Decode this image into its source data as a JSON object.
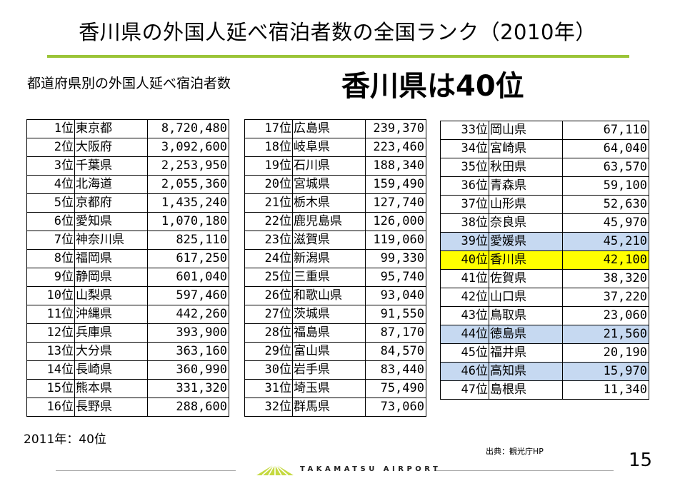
{
  "title": "香川県の外国人延べ宿泊者数の全国ランク（2010年）",
  "subtitle": "都道府県別の外国人延べ宿泊者数",
  "headline": "香川県は40位",
  "note": "2011年：40位",
  "source": "出典：観光庁HP",
  "page_number": "15",
  "footer_brand": "TAKAMATSU AIRPORT",
  "colors": {
    "title_rule": "#9bc438",
    "highlight_blue": "#c6d9f1",
    "highlight_yellow": "#ffff00"
  },
  "tables": [
    {
      "rows": [
        {
          "rank": "1位",
          "prefecture": "東京都",
          "value": "8,720,480"
        },
        {
          "rank": "2位",
          "prefecture": "大阪府",
          "value": "3,092,600"
        },
        {
          "rank": "3位",
          "prefecture": "千葉県",
          "value": "2,253,950"
        },
        {
          "rank": "4位",
          "prefecture": "北海道",
          "value": "2,055,360"
        },
        {
          "rank": "5位",
          "prefecture": "京都府",
          "value": "1,435,240"
        },
        {
          "rank": "6位",
          "prefecture": "愛知県",
          "value": "1,070,180"
        },
        {
          "rank": "7位",
          "prefecture": "神奈川県",
          "value": "825,110"
        },
        {
          "rank": "8位",
          "prefecture": "福岡県",
          "value": "617,250"
        },
        {
          "rank": "9位",
          "prefecture": "静岡県",
          "value": "601,040"
        },
        {
          "rank": "10位",
          "prefecture": "山梨県",
          "value": "597,460"
        },
        {
          "rank": "11位",
          "prefecture": "沖縄県",
          "value": "442,260"
        },
        {
          "rank": "12位",
          "prefecture": "兵庫県",
          "value": "393,900"
        },
        {
          "rank": "13位",
          "prefecture": "大分県",
          "value": "363,160"
        },
        {
          "rank": "14位",
          "prefecture": "長崎県",
          "value": "360,990"
        },
        {
          "rank": "15位",
          "prefecture": "熊本県",
          "value": "331,320"
        },
        {
          "rank": "16位",
          "prefecture": "長野県",
          "value": "288,600"
        }
      ]
    },
    {
      "rows": [
        {
          "rank": "17位",
          "prefecture": "広島県",
          "value": "239,370"
        },
        {
          "rank": "18位",
          "prefecture": "岐阜県",
          "value": "223,460"
        },
        {
          "rank": "19位",
          "prefecture": "石川県",
          "value": "188,340"
        },
        {
          "rank": "20位",
          "prefecture": "宮城県",
          "value": "159,490"
        },
        {
          "rank": "21位",
          "prefecture": "栃木県",
          "value": "127,740"
        },
        {
          "rank": "22位",
          "prefecture": "鹿児島県",
          "value": "126,000"
        },
        {
          "rank": "23位",
          "prefecture": "滋賀県",
          "value": "119,060"
        },
        {
          "rank": "24位",
          "prefecture": "新潟県",
          "value": "99,330"
        },
        {
          "rank": "25位",
          "prefecture": "三重県",
          "value": "95,740"
        },
        {
          "rank": "26位",
          "prefecture": "和歌山県",
          "value": "93,040"
        },
        {
          "rank": "27位",
          "prefecture": "茨城県",
          "value": "91,550"
        },
        {
          "rank": "28位",
          "prefecture": "福島県",
          "value": "87,170"
        },
        {
          "rank": "29位",
          "prefecture": "富山県",
          "value": "84,570"
        },
        {
          "rank": "30位",
          "prefecture": "岩手県",
          "value": "83,440"
        },
        {
          "rank": "31位",
          "prefecture": "埼玉県",
          "value": "75,490"
        },
        {
          "rank": "32位",
          "prefecture": "群馬県",
          "value": "73,060"
        }
      ]
    },
    {
      "rows": [
        {
          "rank": "33位",
          "prefecture": "岡山県",
          "value": "67,110"
        },
        {
          "rank": "34位",
          "prefecture": "宮崎県",
          "value": "64,040"
        },
        {
          "rank": "35位",
          "prefecture": "秋田県",
          "value": "63,570"
        },
        {
          "rank": "36位",
          "prefecture": "青森県",
          "value": "59,100"
        },
        {
          "rank": "37位",
          "prefecture": "山形県",
          "value": "52,630"
        },
        {
          "rank": "38位",
          "prefecture": "奈良県",
          "value": "45,970"
        },
        {
          "rank": "39位",
          "prefecture": "愛媛県",
          "value": "45,210",
          "highlight": "blue"
        },
        {
          "rank": "40位",
          "prefecture": "香川県",
          "value": "42,100",
          "highlight": "yellow"
        },
        {
          "rank": "41位",
          "prefecture": "佐賀県",
          "value": "38,320"
        },
        {
          "rank": "42位",
          "prefecture": "山口県",
          "value": "37,220"
        },
        {
          "rank": "43位",
          "prefecture": "鳥取県",
          "value": "23,060"
        },
        {
          "rank": "44位",
          "prefecture": "徳島県",
          "value": "21,560",
          "highlight": "blue"
        },
        {
          "rank": "45位",
          "prefecture": "福井県",
          "value": "20,190"
        },
        {
          "rank": "46位",
          "prefecture": "高知県",
          "value": "15,970",
          "highlight": "blue"
        },
        {
          "rank": "47位",
          "prefecture": "島根県",
          "value": "11,340"
        }
      ]
    }
  ]
}
